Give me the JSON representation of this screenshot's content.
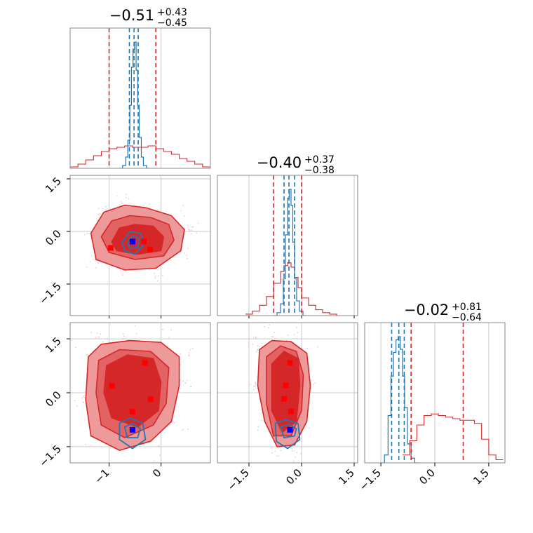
{
  "chart_data": {
    "type": "corner",
    "grid": true,
    "colors": {
      "red": "#d62728",
      "red_light": "#ee9a9b",
      "red_mid": "#e36365",
      "blue": "#1f77b4",
      "blue_marker": "#0000ff",
      "red_marker": "#ff0000",
      "frame": "#888888",
      "grid": "#c8c8c8"
    },
    "parameters": [
      {
        "xlim": [
          -1.75,
          0.95
        ],
        "ticks": [
          -1,
          0
        ],
        "tick_labels": [
          "−1",
          "0"
        ],
        "title": {
          "median": "−0.51",
          "plus": "+0.43",
          "minus": "−0.45"
        },
        "red_quantiles": [
          -1.0,
          -0.1
        ],
        "blue_quantiles": [
          -0.61,
          -0.52,
          -0.44
        ]
      },
      {
        "xlim": [
          -2.4,
          1.6
        ],
        "ticks": [
          -1.5,
          0.0,
          1.5
        ],
        "tick_labels": [
          "−1.5",
          "0.0",
          "1.5"
        ],
        "title": {
          "median": "−0.40",
          "plus": "+0.37",
          "minus": "−0.38"
        },
        "red_quantiles": [
          -0.8,
          0.0
        ],
        "blue_quantiles": [
          -0.5,
          -0.36,
          -0.2
        ]
      },
      {
        "xlim": [
          -1.95,
          1.95
        ],
        "ticks": [
          -1.5,
          0.0,
          1.5
        ],
        "tick_labels": [
          "−1.5",
          "0.0",
          "1.5"
        ],
        "title": {
          "median": "−0.02",
          "plus": "+0.81",
          "minus": "−0.64"
        },
        "red_quantiles": [
          -0.66,
          0.79
        ],
        "blue_quantiles": [
          -1.2,
          -1.0,
          -0.85
        ]
      }
    ],
    "red_histograms": [
      {
        "x": [
          -1.75,
          -1.6,
          -1.45,
          -1.3,
          -1.15,
          -1.0,
          -0.85,
          -0.7,
          -0.55,
          -0.4,
          -0.25,
          -0.1,
          0.05,
          0.2,
          0.35,
          0.5,
          0.65,
          0.8
        ],
        "y": [
          0.01,
          0.03,
          0.06,
          0.09,
          0.12,
          0.14,
          0.15,
          0.16,
          0.15,
          0.15,
          0.16,
          0.14,
          0.12,
          0.1,
          0.07,
          0.05,
          0.03,
          0.01
        ]
      },
      {
        "x": [
          -1.6,
          -1.4,
          -1.2,
          -1.0,
          -0.8,
          -0.6,
          -0.5,
          -0.4,
          -0.3,
          -0.2,
          -0.1,
          0.0,
          0.2,
          0.4,
          0.6,
          0.8,
          1.0
        ],
        "y": [
          0.01,
          0.03,
          0.07,
          0.13,
          0.22,
          0.3,
          0.34,
          0.36,
          0.33,
          0.26,
          0.19,
          0.12,
          0.07,
          0.04,
          0.02,
          0.01,
          0.0
        ]
      },
      {
        "x": [
          -0.9,
          -0.7,
          -0.5,
          -0.3,
          -0.1,
          0.1,
          0.3,
          0.5,
          0.7,
          0.9,
          1.1,
          1.3,
          1.5,
          1.7
        ],
        "y": [
          0.05,
          0.14,
          0.24,
          0.3,
          0.31,
          0.3,
          0.29,
          0.28,
          0.27,
          0.27,
          0.25,
          0.15,
          0.05,
          0.02
        ]
      }
    ],
    "blue_histograms": [
      {
        "x": [
          -0.8,
          -0.74,
          -0.68,
          -0.64,
          -0.6,
          -0.57,
          -0.54,
          -0.51,
          -0.48,
          -0.45,
          -0.42,
          -0.38,
          -0.34,
          -0.28
        ],
        "y": [
          0.0,
          0.02,
          0.08,
          0.2,
          0.45,
          0.72,
          0.85,
          0.9,
          0.7,
          0.45,
          0.22,
          0.08,
          0.02,
          0.0
        ]
      },
      {
        "x": [
          -0.8,
          -0.7,
          -0.6,
          -0.52,
          -0.46,
          -0.4,
          -0.35,
          -0.3,
          -0.25,
          -0.2,
          -0.14,
          -0.06,
          0.04
        ],
        "y": [
          0.0,
          0.02,
          0.08,
          0.25,
          0.55,
          0.8,
          0.86,
          0.75,
          0.5,
          0.25,
          0.1,
          0.03,
          0.0
        ]
      },
      {
        "x": [
          -1.5,
          -1.4,
          -1.3,
          -1.22,
          -1.15,
          -1.08,
          -1.02,
          -0.96,
          -0.9,
          -0.84,
          -0.76,
          -0.66,
          -0.56
        ],
        "y": [
          0.0,
          0.05,
          0.3,
          0.55,
          0.7,
          0.78,
          0.8,
          0.72,
          0.55,
          0.35,
          0.12,
          0.03,
          0.0
        ]
      }
    ],
    "panels_2d": [
      {
        "row": 1,
        "col": 0,
        "red_contours": [
          [
            [
              -1.35,
              -0.05
            ],
            [
              -1.1,
              0.55
            ],
            [
              -0.7,
              0.75
            ],
            [
              -0.3,
              0.68
            ],
            [
              0.2,
              0.45
            ],
            [
              0.45,
              0.05
            ],
            [
              0.38,
              -0.55
            ],
            [
              -0.1,
              -1.05
            ],
            [
              -0.7,
              -1.1
            ],
            [
              -1.25,
              -0.8
            ]
          ],
          [
            [
              -1.15,
              -0.15
            ],
            [
              -0.95,
              0.3
            ],
            [
              -0.6,
              0.45
            ],
            [
              -0.2,
              0.4
            ],
            [
              0.15,
              0.2
            ],
            [
              0.25,
              -0.25
            ],
            [
              0.05,
              -0.7
            ],
            [
              -0.5,
              -0.8
            ],
            [
              -1.0,
              -0.6
            ]
          ],
          [
            [
              -0.95,
              -0.3
            ],
            [
              -0.8,
              0.1
            ],
            [
              -0.5,
              0.2
            ],
            [
              -0.15,
              0.15
            ],
            [
              0.05,
              -0.15
            ],
            [
              0.0,
              -0.55
            ],
            [
              -0.45,
              -0.65
            ],
            [
              -0.85,
              -0.55
            ]
          ]
        ],
        "blue_contours": [
          [
            [
              -0.75,
              -0.3
            ],
            [
              -0.6,
              0.0
            ],
            [
              -0.4,
              -0.05
            ],
            [
              -0.32,
              -0.35
            ],
            [
              -0.5,
              -0.65
            ],
            [
              -0.7,
              -0.55
            ]
          ],
          [
            [
              -0.65,
              -0.3
            ],
            [
              -0.55,
              -0.12
            ],
            [
              -0.42,
              -0.2
            ],
            [
              -0.45,
              -0.45
            ],
            [
              -0.6,
              -0.48
            ]
          ]
        ],
        "red_points": [
          [
            -0.97,
            -0.47
          ],
          [
            -0.33,
            -0.29
          ],
          [
            -0.21,
            -0.51
          ]
        ],
        "blue_points": [
          [
            -0.55,
            -0.29
          ]
        ]
      },
      {
        "row": 2,
        "col": 0,
        "red_contours": [
          [
            [
              -1.4,
              1.0
            ],
            [
              -1.15,
              1.35
            ],
            [
              -0.6,
              1.45
            ],
            [
              0.0,
              1.4
            ],
            [
              0.35,
              1.0
            ],
            [
              0.35,
              0.2
            ],
            [
              0.2,
              -0.8
            ],
            [
              -0.2,
              -1.35
            ],
            [
              -0.8,
              -1.6
            ],
            [
              -1.35,
              -1.2
            ],
            [
              -1.45,
              -0.2
            ]
          ],
          [
            [
              -1.2,
              0.9
            ],
            [
              -0.8,
              1.2
            ],
            [
              -0.2,
              1.15
            ],
            [
              0.15,
              0.7
            ],
            [
              0.1,
              -0.3
            ],
            [
              -0.15,
              -0.9
            ],
            [
              -0.7,
              -1.25
            ],
            [
              -1.15,
              -0.9
            ],
            [
              -1.25,
              0.0
            ]
          ],
          [
            [
              -1.05,
              0.75
            ],
            [
              -0.65,
              1.05
            ],
            [
              -0.15,
              0.95
            ],
            [
              0.0,
              0.3
            ],
            [
              -0.05,
              -0.5
            ],
            [
              -0.45,
              -0.95
            ],
            [
              -0.95,
              -0.7
            ],
            [
              -1.1,
              0.0
            ]
          ]
        ],
        "blue_contours": [
          [
            [
              -0.8,
              -0.85
            ],
            [
              -0.6,
              -0.7
            ],
            [
              -0.35,
              -0.85
            ],
            [
              -0.3,
              -1.3
            ],
            [
              -0.55,
              -1.55
            ],
            [
              -0.8,
              -1.3
            ]
          ],
          [
            [
              -0.7,
              -0.95
            ],
            [
              -0.55,
              -0.85
            ],
            [
              -0.4,
              -1.0
            ],
            [
              -0.45,
              -1.25
            ],
            [
              -0.65,
              -1.25
            ]
          ]
        ],
        "red_points": [
          [
            -0.31,
            0.83
          ],
          [
            -0.95,
            0.19
          ],
          [
            -0.55,
            -0.52
          ],
          [
            -0.2,
            -0.18
          ]
        ],
        "blue_points": [
          [
            -0.55,
            -1.03
          ]
        ]
      },
      {
        "row": 2,
        "col": 1,
        "red_contours": [
          [
            [
              -1.2,
              1.2
            ],
            [
              -0.85,
              1.45
            ],
            [
              -0.3,
              1.42
            ],
            [
              0.15,
              1.1
            ],
            [
              0.25,
              0.2
            ],
            [
              0.15,
              -0.8
            ],
            [
              -0.2,
              -1.45
            ],
            [
              -0.7,
              -1.5
            ],
            [
              -1.05,
              -0.8
            ],
            [
              -1.25,
              0.2
            ]
          ],
          [
            [
              -1.0,
              1.0
            ],
            [
              -0.6,
              1.3
            ],
            [
              -0.15,
              1.15
            ],
            [
              0.05,
              0.5
            ],
            [
              0.0,
              -0.5
            ],
            [
              -0.3,
              -1.2
            ],
            [
              -0.8,
              -1.2
            ],
            [
              -1.0,
              -0.3
            ]
          ],
          [
            [
              -0.85,
              0.8
            ],
            [
              -0.5,
              1.15
            ],
            [
              -0.1,
              0.95
            ],
            [
              -0.05,
              0.2
            ],
            [
              -0.15,
              -0.8
            ],
            [
              -0.55,
              -1.1
            ],
            [
              -0.85,
              -0.5
            ]
          ]
        ],
        "blue_contours": [
          [
            [
              -0.75,
              -0.85
            ],
            [
              -0.45,
              -0.75
            ],
            [
              -0.1,
              -0.85
            ],
            [
              -0.05,
              -1.3
            ],
            [
              -0.4,
              -1.55
            ],
            [
              -0.72,
              -1.35
            ]
          ],
          [
            [
              -0.6,
              -0.95
            ],
            [
              -0.35,
              -0.88
            ],
            [
              -0.15,
              -1.0
            ],
            [
              -0.2,
              -1.2
            ],
            [
              -0.5,
              -1.25
            ]
          ]
        ],
        "red_points": [
          [
            -0.33,
            0.83
          ],
          [
            -0.45,
            0.2
          ],
          [
            -0.5,
            -0.17
          ],
          [
            -0.3,
            -0.52
          ]
        ],
        "blue_points": [
          [
            -0.33,
            -1.03
          ]
        ]
      }
    ]
  }
}
